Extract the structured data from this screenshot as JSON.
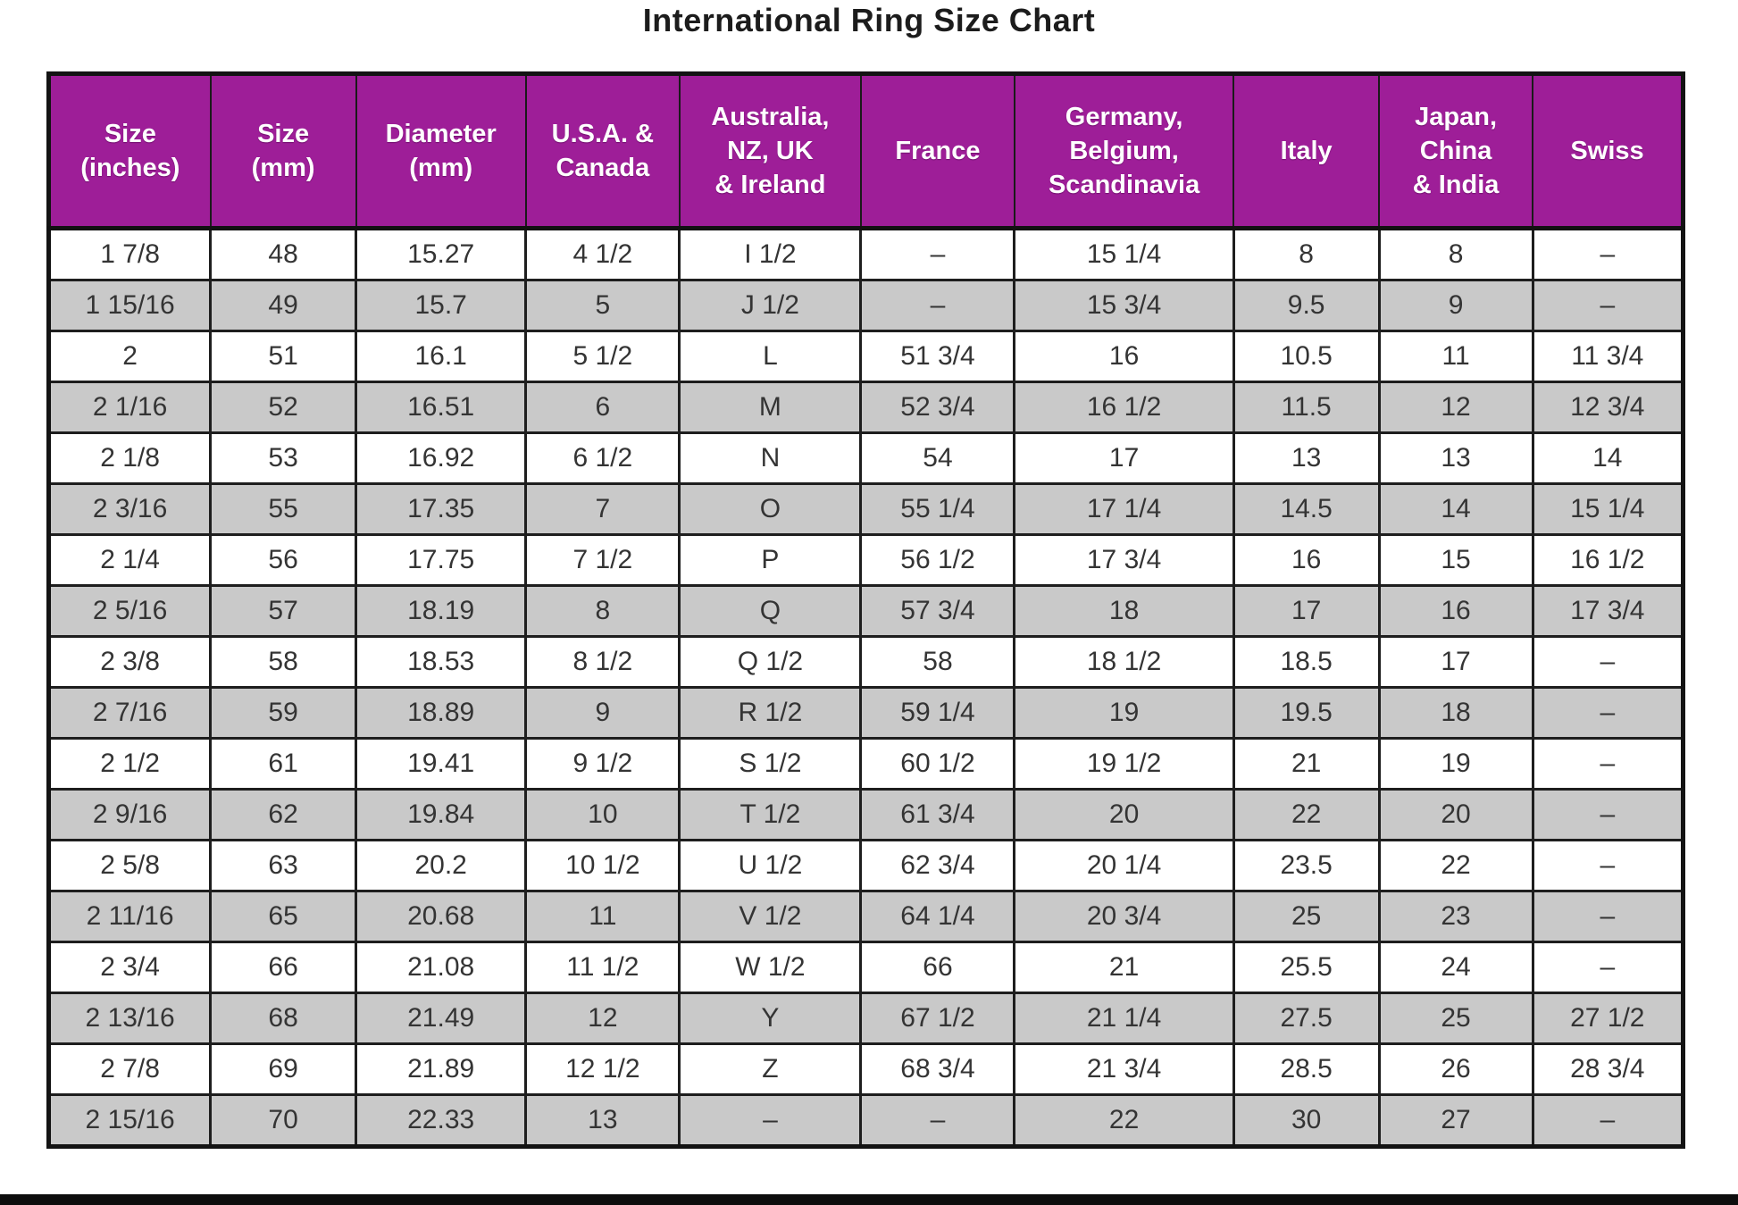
{
  "page": {
    "title": "International Ring Size Chart"
  },
  "colors": {
    "header_bg": "#9e1e98",
    "header_text": "#ffffff",
    "row_bg": "#ffffff",
    "row_alt_bg": "#c9c9c9",
    "border": "#1a1a1a",
    "body_text": "#343434",
    "bottom_bar": "#0d0d0d"
  },
  "chart_data": {
    "type": "table",
    "title": "International Ring Size Chart",
    "legend_position": "none",
    "grid": true,
    "columns": [
      "Size\n(inches)",
      "Size\n(mm)",
      "Diameter\n(mm)",
      "U.S.A. &\nCanada",
      "Australia,\nNZ, UK\n& Ireland",
      "France",
      "Germany,\nBelgium,\nScandinavia",
      "Italy",
      "Japan,\nChina\n& India",
      "Swiss"
    ],
    "rows": [
      [
        "1 7/8",
        "48",
        "15.27",
        "4 1/2",
        "I 1/2",
        "–",
        "15 1/4",
        "8",
        "8",
        "–"
      ],
      [
        "1 15/16",
        "49",
        "15.7",
        "5",
        "J 1/2",
        "–",
        "15 3/4",
        "9.5",
        "9",
        "–"
      ],
      [
        "2",
        "51",
        "16.1",
        "5 1/2",
        "L",
        "51 3/4",
        "16",
        "10.5",
        "11",
        "11 3/4"
      ],
      [
        "2 1/16",
        "52",
        "16.51",
        "6",
        "M",
        "52 3/4",
        "16 1/2",
        "11.5",
        "12",
        "12 3/4"
      ],
      [
        "2 1/8",
        "53",
        "16.92",
        "6 1/2",
        "N",
        "54",
        "17",
        "13",
        "13",
        "14"
      ],
      [
        "2 3/16",
        "55",
        "17.35",
        "7",
        "O",
        "55 1/4",
        "17 1/4",
        "14.5",
        "14",
        "15 1/4"
      ],
      [
        "2 1/4",
        "56",
        "17.75",
        "7 1/2",
        "P",
        "56 1/2",
        "17 3/4",
        "16",
        "15",
        "16 1/2"
      ],
      [
        "2 5/16",
        "57",
        "18.19",
        "8",
        "Q",
        "57 3/4",
        "18",
        "17",
        "16",
        "17 3/4"
      ],
      [
        "2 3/8",
        "58",
        "18.53",
        "8 1/2",
        "Q 1/2",
        "58",
        "18 1/2",
        "18.5",
        "17",
        "–"
      ],
      [
        "2 7/16",
        "59",
        "18.89",
        "9",
        "R 1/2",
        "59 1/4",
        "19",
        "19.5",
        "18",
        "–"
      ],
      [
        "2 1/2",
        "61",
        "19.41",
        "9 1/2",
        "S 1/2",
        "60 1/2",
        "19 1/2",
        "21",
        "19",
        "–"
      ],
      [
        "2 9/16",
        "62",
        "19.84",
        "10",
        "T 1/2",
        "61 3/4",
        "20",
        "22",
        "20",
        "–"
      ],
      [
        "2 5/8",
        "63",
        "20.2",
        "10 1/2",
        "U 1/2",
        "62 3/4",
        "20 1/4",
        "23.5",
        "22",
        "–"
      ],
      [
        "2 11/16",
        "65",
        "20.68",
        "11",
        "V 1/2",
        "64 1/4",
        "20 3/4",
        "25",
        "23",
        "–"
      ],
      [
        "2 3/4",
        "66",
        "21.08",
        "11 1/2",
        "W 1/2",
        "66",
        "21",
        "25.5",
        "24",
        "–"
      ],
      [
        "2 13/16",
        "68",
        "21.49",
        "12",
        "Y",
        "67 1/2",
        "21 1/4",
        "27.5",
        "25",
        "27 1/2"
      ],
      [
        "2 7/8",
        "69",
        "21.89",
        "12 1/2",
        "Z",
        "68 3/4",
        "21 3/4",
        "28.5",
        "26",
        "28 3/4"
      ],
      [
        "2 15/16",
        "70",
        "22.33",
        "13",
        "–",
        "–",
        "22",
        "30",
        "27",
        "–"
      ]
    ]
  }
}
